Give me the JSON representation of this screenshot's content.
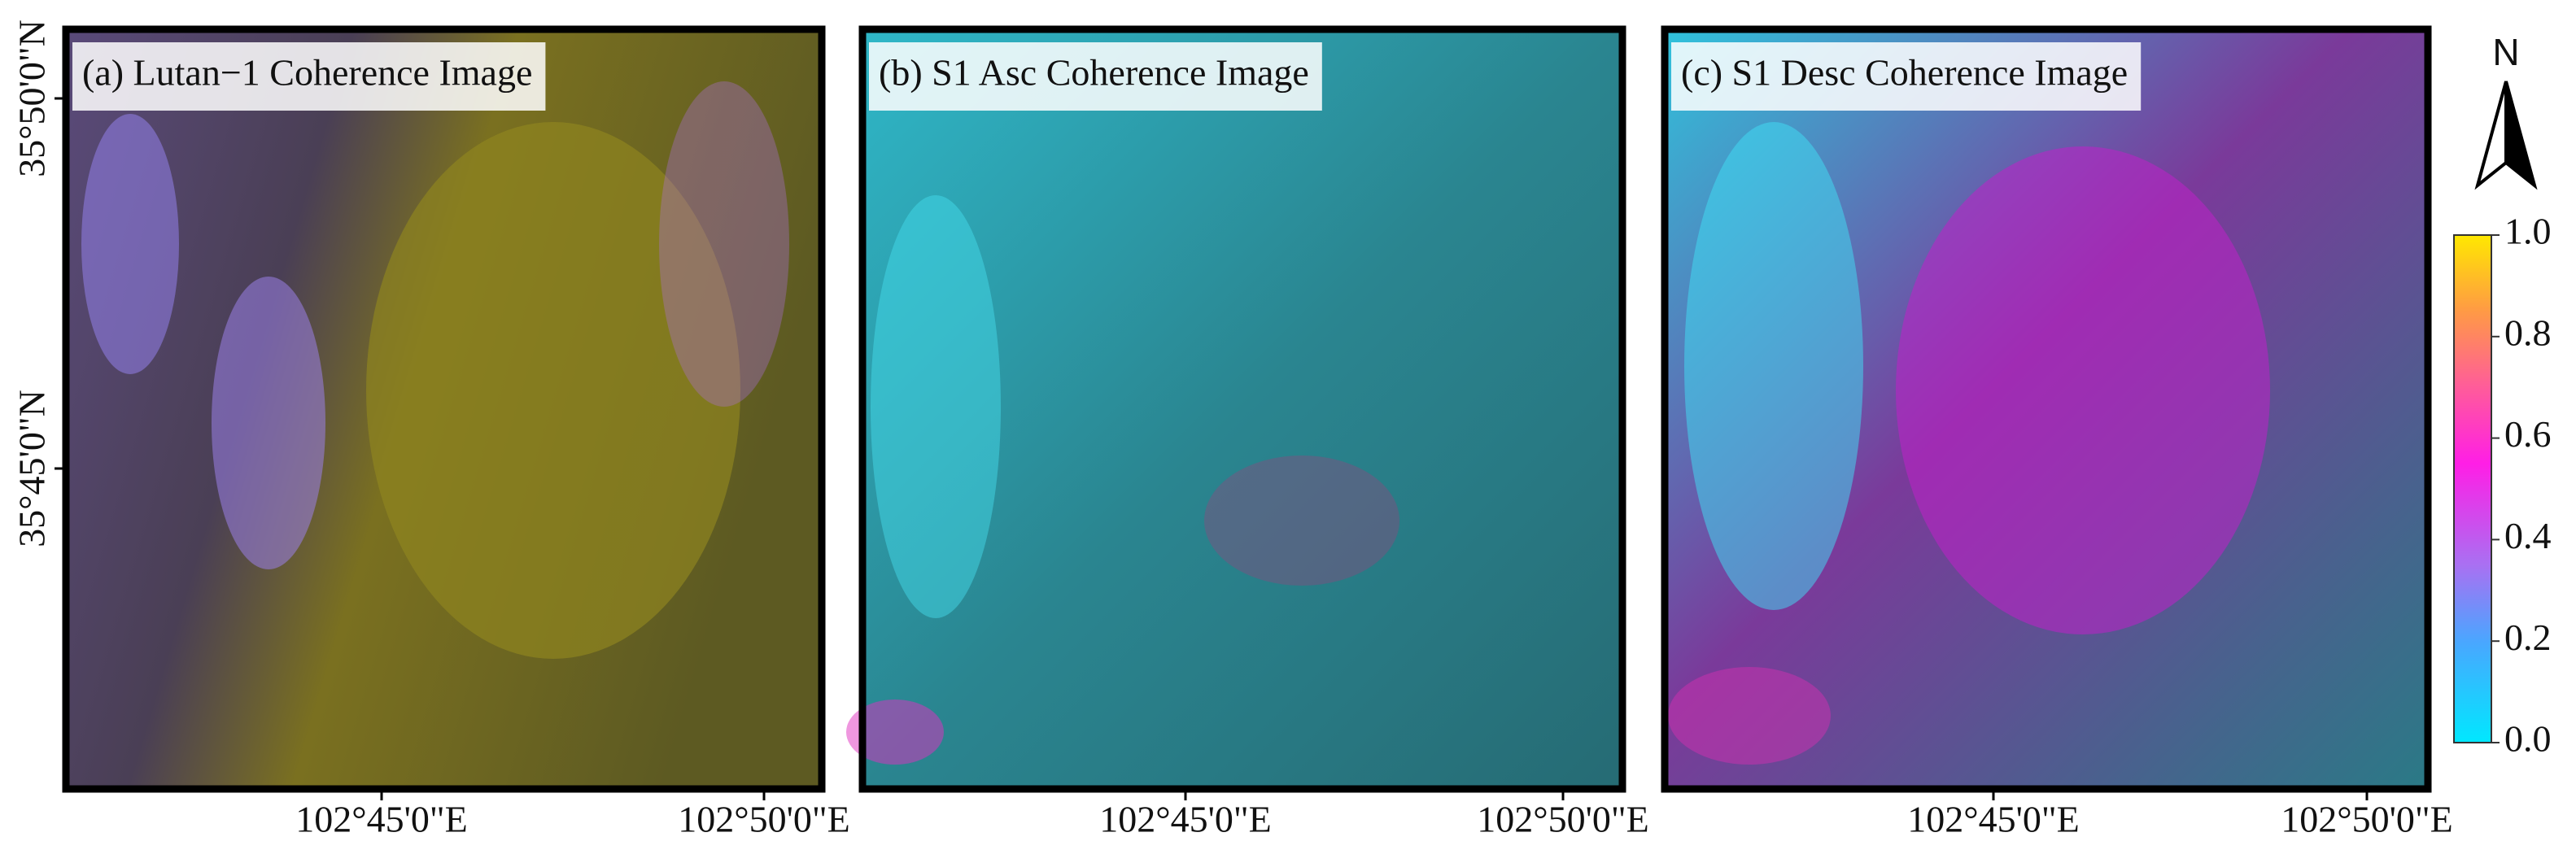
{
  "panels": [
    {
      "title": "(a) Lutan−1 Coherence Image",
      "x_labels": [
        "102°45'0\"E",
        "102°50'0\"E"
      ],
      "y_labels": [
        "35°50'0\"N",
        "35°45'0\"N"
      ]
    },
    {
      "title": "(b) S1 Asc Coherence Image",
      "x_labels": [
        "102°45'0\"E",
        "102°50'0\"E"
      ]
    },
    {
      "title": "(c) S1 Desc Coherence Image",
      "x_labels": [
        "102°45'0\"E",
        "102°50'0\"E"
      ]
    }
  ],
  "north_arrow": "N",
  "colorbar": {
    "range": [
      0,
      1
    ],
    "ticks": [
      {
        "value": 0,
        "label": "0.0"
      },
      {
        "value": 0.2,
        "label": "0.2"
      },
      {
        "value": 0.4,
        "label": "0.4"
      },
      {
        "value": 0.6,
        "label": "0.6"
      },
      {
        "value": 0.8,
        "label": "0.8"
      },
      {
        "value": 1,
        "label": "1.0"
      }
    ]
  }
}
